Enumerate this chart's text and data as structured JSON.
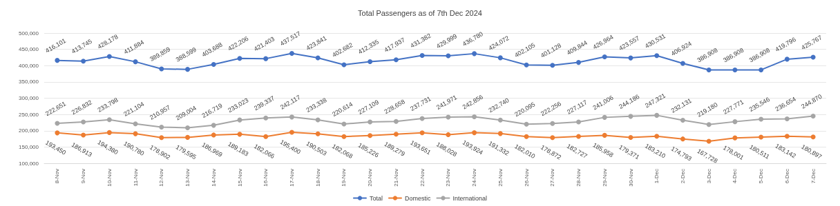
{
  "chart_data": {
    "type": "line",
    "title": "Total Passengers as of 7th Dec 2024",
    "categories": [
      "8-Nov",
      "9-Nov",
      "10-Nov",
      "11-Nov",
      "12-Nov",
      "13-Nov",
      "14-Nov",
      "15-Nov",
      "16-Nov",
      "17-Nov",
      "18-Nov",
      "19-Nov",
      "20-Nov",
      "21-Nov",
      "22-Nov",
      "23-Nov",
      "24-Nov",
      "25-Nov",
      "26-Nov",
      "27-Nov",
      "28-Nov",
      "29-Nov",
      "30-Nov",
      "1-Dec",
      "2-Dec",
      "3-Dec",
      "4-Dec",
      "5-Dec",
      "6-Dec",
      "7-Dec"
    ],
    "series": [
      {
        "name": "Total",
        "color": "#4472c4",
        "values": [
          416101,
          413745,
          428178,
          411884,
          389859,
          388599,
          403688,
          422206,
          421403,
          437517,
          423841,
          402682,
          412335,
          417937,
          431382,
          429999,
          436780,
          424072,
          402105,
          401128,
          409844,
          426964,
          423557,
          430531,
          406924,
          386908,
          386908,
          386908,
          419796,
          425767
        ],
        "value_labels": [
          "416,101",
          "413,745",
          "428,178",
          "411,884",
          "389,859",
          "388,599",
          "403,688",
          "422,206",
          "421,403",
          "437,517",
          "423,841",
          "402,682",
          "412,335",
          "417,937",
          "431,382",
          "429,999",
          "436,780",
          "424,072",
          "402,105",
          "401,128",
          "409,844",
          "426,964",
          "423,557",
          "430,531",
          "406,924",
          "386,908",
          "386,908",
          "386,908",
          "419,796",
          "425,767"
        ]
      },
      {
        "name": "Domestic",
        "color": "#ed7d31",
        "values": [
          193450,
          186913,
          194380,
          190780,
          178902,
          179595,
          186969,
          189183,
          182066,
          195400,
          190503,
          182068,
          185226,
          189279,
          193651,
          188028,
          193924,
          191332,
          182010,
          178872,
          182727,
          185958,
          179371,
          183210,
          174793,
          167728,
          178001,
          180511,
          183142,
          180897
        ],
        "value_labels": [
          "193,450",
          "186,913",
          "194,380",
          "190,780",
          "178,902",
          "179,595",
          "186,969",
          "189,183",
          "182,066",
          "195,400",
          "190,503",
          "182,068",
          "185,226",
          "189,279",
          "193,651",
          "188,028",
          "193,924",
          "191,332",
          "182,010",
          "178,872",
          "182,727",
          "185,958",
          "179,371",
          "183,210",
          "174,793",
          "167,728",
          "178,001",
          "180,511",
          "183,142",
          "180,897"
        ]
      },
      {
        "name": "International",
        "color": "#a5a5a5",
        "values": [
          222651,
          226832,
          233798,
          221104,
          210957,
          209004,
          216719,
          233023,
          239337,
          242117,
          233338,
          220614,
          227109,
          228658,
          237731,
          241971,
          242856,
          232740,
          220095,
          222256,
          227117,
          241006,
          244186,
          247321,
          232131,
          219180,
          227771,
          235546,
          236654,
          244870
        ],
        "value_labels": [
          "222,651",
          "226,832",
          "233,798",
          "221,104",
          "210,957",
          "209,004",
          "216,719",
          "233,023",
          "239,337",
          "242,117",
          "233,338",
          "220,614",
          "227,109",
          "228,658",
          "237,731",
          "241,971",
          "242,856",
          "232,740",
          "220,095",
          "222,256",
          "227,117",
          "241,006",
          "244,186",
          "247,321",
          "232,131",
          "219,180",
          "227,771",
          "235,546",
          "236,654",
          "244,870"
        ]
      }
    ],
    "ylim": [
      100000,
      500000
    ],
    "yticks": [
      {
        "value": 100000,
        "label": "100,000"
      },
      {
        "value": 150000,
        "label": "150,000"
      },
      {
        "value": 200000,
        "label": "200,000"
      },
      {
        "value": 250000,
        "label": "250,000"
      },
      {
        "value": 300000,
        "label": "300,000"
      },
      {
        "value": 350000,
        "label": "350,000"
      },
      {
        "value": 400000,
        "label": "400,000"
      },
      {
        "value": 450000,
        "label": "450,000"
      },
      {
        "value": 500000,
        "label": "500,000"
      }
    ],
    "grid": "y",
    "legend": "bottom",
    "marker": "circle",
    "line_style": "solid"
  }
}
